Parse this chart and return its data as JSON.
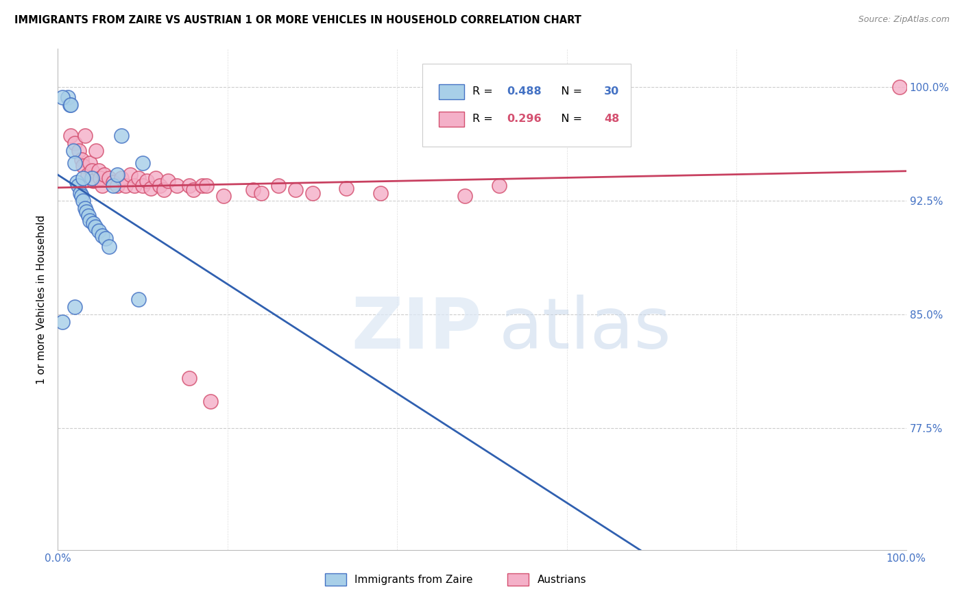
{
  "title": "IMMIGRANTS FROM ZAIRE VS AUSTRIAN 1 OR MORE VEHICLES IN HOUSEHOLD CORRELATION CHART",
  "source": "Source: ZipAtlas.com",
  "ylabel": "1 or more Vehicles in Household",
  "ytick_labels": [
    "100.0%",
    "92.5%",
    "85.0%",
    "77.5%"
  ],
  "ytick_values": [
    1.0,
    0.925,
    0.85,
    0.775
  ],
  "xlim": [
    0.0,
    1.0
  ],
  "ylim": [
    0.695,
    1.025
  ],
  "legend_label1": "Immigrants from Zaire",
  "legend_label2": "Austrians",
  "r1": "0.488",
  "n1": "30",
  "r2": "0.296",
  "n2": "48",
  "blue_color": "#a8cfe8",
  "blue_edge": "#4472c4",
  "pink_color": "#f4b0c8",
  "pink_edge": "#d45070",
  "blue_line_color": "#3060b0",
  "pink_line_color": "#c84060",
  "r1_color": "#4472c4",
  "n1_color": "#4472c4",
  "r2_color": "#d45070",
  "n2_color": "#d45070",
  "blue_scatter_x": [
    0.005,
    0.012,
    0.014,
    0.018,
    0.02,
    0.022,
    0.024,
    0.026,
    0.028,
    0.03,
    0.032,
    0.034,
    0.036,
    0.038,
    0.04,
    0.042,
    0.044,
    0.048,
    0.052,
    0.056,
    0.06,
    0.065,
    0.07,
    0.075,
    0.095,
    0.1,
    0.005,
    0.015,
    0.02,
    0.03
  ],
  "blue_scatter_y": [
    0.845,
    0.993,
    0.988,
    0.958,
    0.95,
    0.937,
    0.935,
    0.93,
    0.928,
    0.925,
    0.92,
    0.918,
    0.915,
    0.912,
    0.94,
    0.91,
    0.908,
    0.905,
    0.902,
    0.9,
    0.895,
    0.935,
    0.942,
    0.968,
    0.86,
    0.95,
    0.993,
    0.988,
    0.855,
    0.94
  ],
  "pink_scatter_x": [
    0.015,
    0.02,
    0.025,
    0.028,
    0.03,
    0.032,
    0.035,
    0.038,
    0.04,
    0.042,
    0.045,
    0.048,
    0.05,
    0.052,
    0.055,
    0.06,
    0.065,
    0.07,
    0.075,
    0.08,
    0.085,
    0.09,
    0.095,
    0.1,
    0.105,
    0.11,
    0.115,
    0.12,
    0.125,
    0.13,
    0.14,
    0.155,
    0.16,
    0.17,
    0.175,
    0.23,
    0.24,
    0.26,
    0.28,
    0.3,
    0.34,
    0.38,
    0.18,
    0.195,
    0.48,
    0.52,
    0.155,
    0.992
  ],
  "pink_scatter_y": [
    0.968,
    0.963,
    0.958,
    0.952,
    0.948,
    0.968,
    0.942,
    0.95,
    0.945,
    0.938,
    0.958,
    0.945,
    0.94,
    0.935,
    0.942,
    0.94,
    0.937,
    0.935,
    0.94,
    0.935,
    0.942,
    0.935,
    0.94,
    0.935,
    0.938,
    0.933,
    0.94,
    0.935,
    0.932,
    0.938,
    0.935,
    0.935,
    0.932,
    0.935,
    0.935,
    0.932,
    0.93,
    0.935,
    0.932,
    0.93,
    0.933,
    0.93,
    0.793,
    0.928,
    0.928,
    0.935,
    0.808,
    1.0
  ]
}
